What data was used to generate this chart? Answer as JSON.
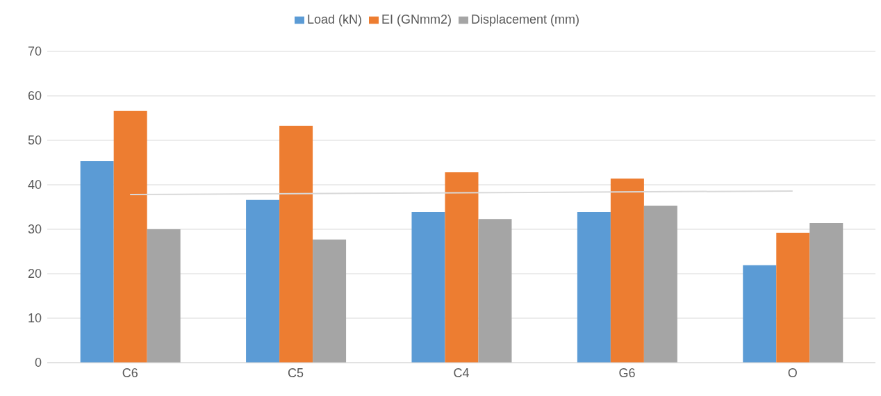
{
  "chart_data": {
    "type": "bar",
    "categories": [
      "C6",
      "C5",
      "C4",
      "G6",
      "O"
    ],
    "series": [
      {
        "name": "Load (kN)",
        "color": "#5b9bd5",
        "values": [
          45.3,
          36.6,
          33.9,
          33.9,
          21.9
        ]
      },
      {
        "name": "EI (GNmm2)",
        "color": "#ed7d31",
        "values": [
          56.6,
          53.3,
          42.8,
          41.4,
          29.2
        ]
      },
      {
        "name": "Displacement (mm)",
        "color": "#a5a5a5",
        "values": [
          30.0,
          27.7,
          32.3,
          35.3,
          31.4
        ]
      },
      {
        "type": "line",
        "color": "#d9d9d9",
        "x": [
          "C6",
          "O"
        ],
        "values": [
          37.8,
          38.6
        ]
      }
    ],
    "ylim": [
      0,
      70
    ],
    "yticks": [
      0,
      10,
      20,
      30,
      40,
      50,
      60,
      70
    ],
    "grid": "y",
    "legend": "top"
  }
}
